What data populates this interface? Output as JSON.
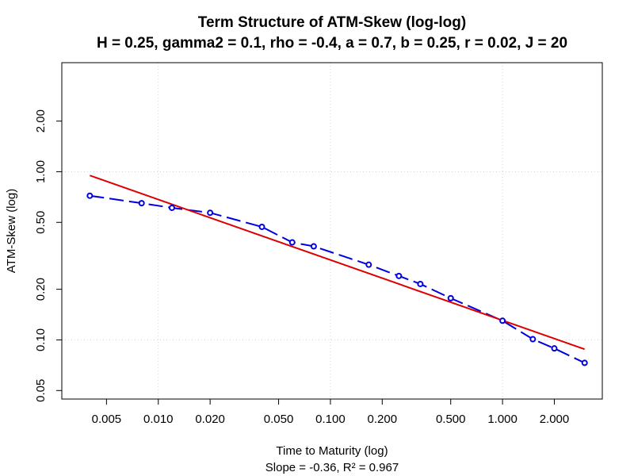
{
  "chart_data": {
    "type": "line",
    "title": "Term Structure of ATM-Skew (log-log)",
    "subtitle": "H = 0.25, gamma2 = 0.1, rho = -0.4, a = 0.7, b = 0.25, r = 0.02, J = 20",
    "xlabel": "Time to Maturity (log)",
    "ylabel": "ATM-Skew (log)",
    "caption": "Slope = -0.36, R² = 0.967",
    "x_scale": "log",
    "y_scale": "log",
    "xlim": [
      0.00275,
      3.8
    ],
    "ylim": [
      0.0445,
      4.45
    ],
    "x_ticks": [
      0.005,
      0.01,
      0.02,
      0.05,
      0.1,
      0.2,
      0.5,
      1,
      2
    ],
    "x_tick_labels": [
      "0.005",
      "0.010",
      "0.020",
      "0.050",
      "0.100",
      "0.200",
      "0.500",
      "1.000",
      "2.000"
    ],
    "y_ticks": [
      0.05,
      0.1,
      0.2,
      0.5,
      1,
      2
    ],
    "y_tick_labels": [
      "0.05",
      "0.10",
      "0.20",
      "0.50",
      "1.00",
      "2.00"
    ],
    "grid": true,
    "colors": {
      "series": "#0000dd",
      "fit": "#dd0000",
      "grid": "#d3d3d3"
    },
    "series": [
      {
        "x": [
          0.004,
          0.008,
          0.012,
          0.02,
          0.04,
          0.06,
          0.08,
          0.167,
          0.25,
          0.333,
          0.5,
          1.0,
          1.5,
          2.0,
          3.0
        ],
        "y": [
          0.72,
          0.65,
          0.61,
          0.57,
          0.47,
          0.38,
          0.36,
          0.28,
          0.24,
          0.215,
          0.177,
          0.13,
          0.101,
          0.089,
          0.073
        ]
      },
      {
        "type": "fit-line",
        "x": [
          0.004,
          3.0
        ],
        "y": [
          0.95,
          0.088
        ]
      }
    ]
  }
}
